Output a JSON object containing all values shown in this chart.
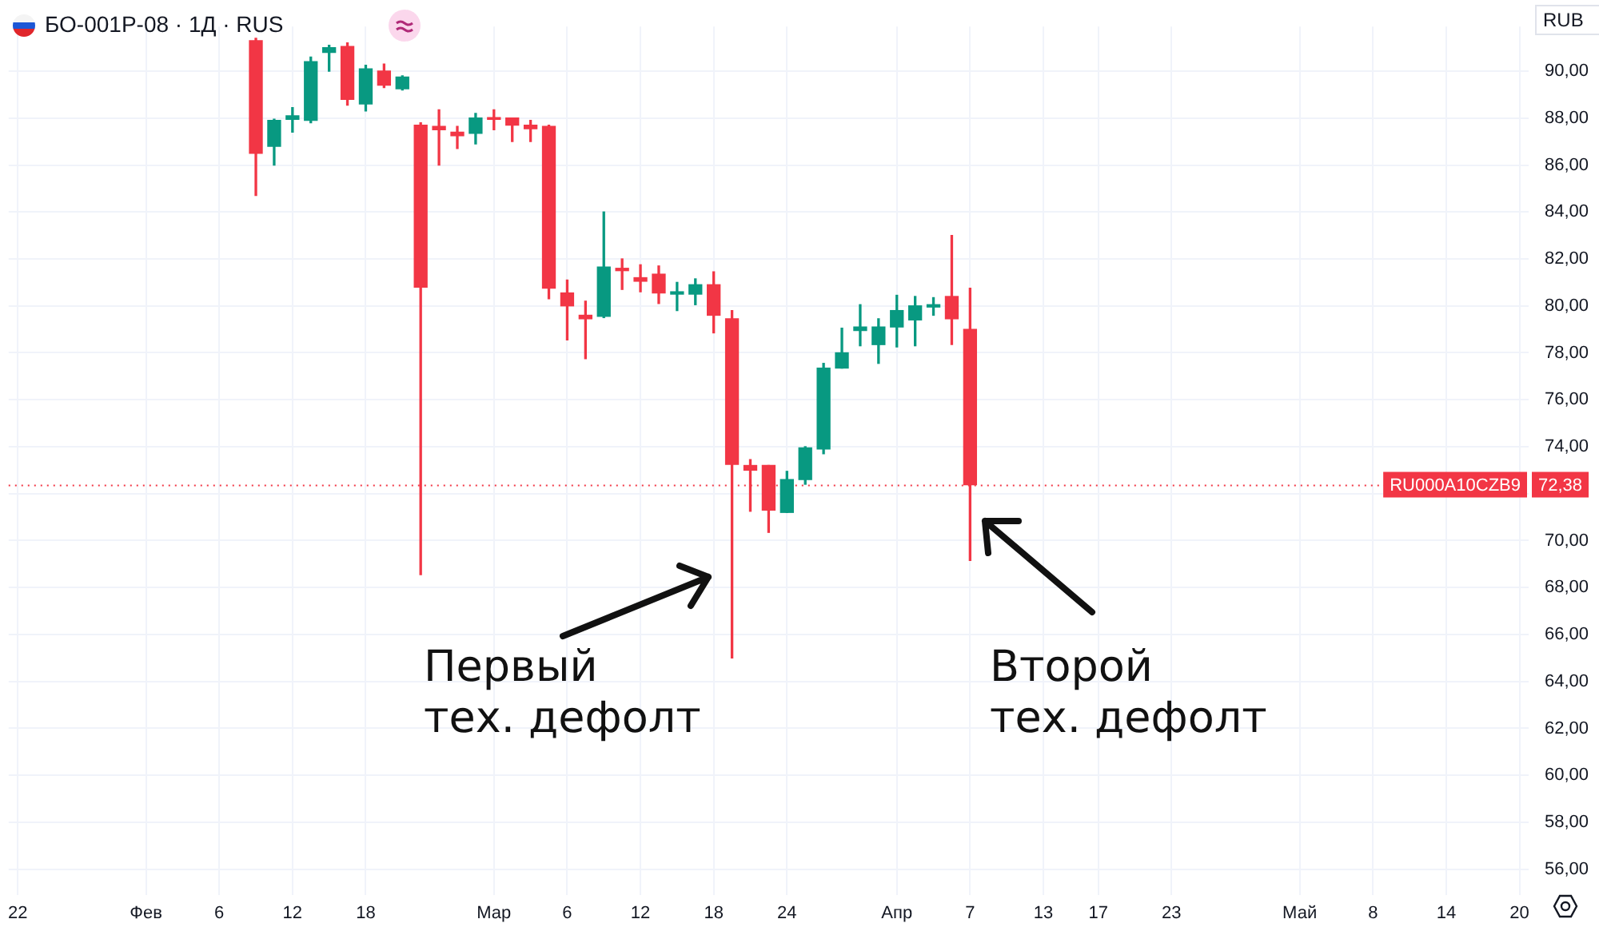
{
  "chart_data": {
    "type": "candlestick",
    "title": "БО-001P-08 · 1Д · RUS",
    "categories": [
      "22",
      null,
      null,
      null,
      null,
      null,
      null,
      "Фев",
      null,
      null,
      null,
      "6",
      null,
      null,
      null,
      "12",
      null,
      null,
      null,
      "18",
      null,
      null,
      null,
      null,
      null,
      null,
      "Мар",
      null,
      null,
      null,
      "6",
      null,
      null,
      null,
      "12",
      null,
      null,
      null,
      "18",
      null,
      null,
      null,
      "24",
      null,
      null,
      null,
      null,
      null,
      "Апр",
      null,
      null,
      null,
      "7",
      null,
      null,
      null,
      "13",
      null,
      null,
      "17",
      null,
      null,
      null,
      "23",
      null,
      null,
      null,
      null,
      null,
      null,
      "Май",
      null,
      null,
      null,
      "8",
      null,
      null,
      null,
      "14",
      null,
      null,
      null,
      "20"
    ],
    "ohlc": [
      null,
      null,
      null,
      null,
      null,
      null,
      null,
      null,
      null,
      null,
      null,
      null,
      null,
      [
        91.3,
        91.4,
        84.7,
        86.5
      ],
      [
        86.8,
        87.95,
        86.0,
        87.9
      ],
      [
        87.95,
        88.45,
        87.4,
        88.1
      ],
      [
        87.9,
        90.6,
        87.8,
        90.4
      ],
      [
        90.8,
        91.1,
        90.0,
        91.0
      ],
      [
        91.05,
        91.2,
        88.55,
        88.8
      ],
      [
        88.6,
        90.25,
        88.3,
        90.1
      ],
      [
        90.0,
        90.3,
        89.3,
        89.4
      ],
      [
        89.25,
        89.8,
        89.2,
        89.75
      ],
      [
        87.7,
        87.8,
        68.55,
        80.8
      ],
      [
        87.65,
        88.35,
        86.0,
        87.5
      ],
      [
        87.4,
        87.65,
        86.7,
        87.25
      ],
      [
        87.35,
        88.2,
        86.9,
        88.0
      ],
      [
        88.0,
        88.35,
        87.5,
        87.95
      ],
      [
        88.0,
        88.0,
        87.0,
        87.7
      ],
      [
        87.7,
        87.9,
        87.0,
        87.55
      ],
      [
        87.65,
        87.7,
        80.3,
        80.75
      ],
      [
        80.55,
        81.1,
        78.55,
        80.0
      ],
      [
        79.6,
        80.2,
        77.75,
        79.45
      ],
      [
        79.55,
        84.0,
        79.5,
        81.65
      ],
      [
        81.6,
        82.0,
        80.7,
        81.5
      ],
      [
        81.2,
        81.75,
        80.6,
        81.05
      ],
      [
        81.35,
        81.7,
        80.1,
        80.55
      ],
      [
        80.5,
        81.0,
        79.8,
        80.6
      ],
      [
        80.5,
        81.15,
        80.05,
        80.9
      ],
      [
        80.9,
        81.45,
        78.85,
        79.6
      ],
      [
        79.45,
        79.8,
        65.0,
        73.25
      ],
      [
        73.2,
        73.45,
        71.25,
        73.0
      ],
      [
        73.2,
        73.2,
        70.35,
        71.3
      ],
      [
        71.2,
        72.95,
        71.2,
        72.6
      ],
      [
        72.6,
        74.0,
        72.4,
        73.95
      ],
      [
        73.9,
        77.55,
        73.7,
        77.35
      ],
      [
        77.35,
        79.05,
        77.35,
        78.0
      ],
      [
        78.95,
        80.05,
        78.3,
        79.1
      ],
      [
        78.35,
        79.45,
        77.55,
        79.1
      ],
      [
        79.1,
        80.45,
        78.25,
        79.8
      ],
      [
        79.4,
        80.4,
        78.3,
        80.0
      ],
      [
        79.95,
        80.35,
        79.6,
        80.05
      ],
      [
        80.4,
        83.0,
        78.35,
        79.45
      ],
      [
        79.0,
        80.75,
        69.15,
        72.38
      ],
      null,
      null,
      null,
      null,
      null,
      null,
      null,
      null,
      null,
      null,
      null,
      null,
      null,
      null,
      null,
      null,
      null,
      null,
      null,
      null,
      null,
      null,
      null,
      null,
      null,
      null,
      null,
      null,
      null,
      null
    ],
    "colors": [
      null,
      null,
      null,
      null,
      null,
      null,
      null,
      null,
      null,
      null,
      null,
      null,
      null,
      "#f23645",
      "#089981",
      "#089981",
      "#089981",
      "#089981",
      "#f23645",
      "#089981",
      "#f23645",
      "#089981",
      "#f23645",
      "#f23645",
      "#f23645",
      "#089981",
      "#f23645",
      "#f23645",
      "#f23645",
      "#f23645",
      "#f23645",
      "#f23645",
      "#089981",
      "#f23645",
      "#f23645",
      "#f23645",
      "#089981",
      "#089981",
      "#f23645",
      "#f23645",
      "#f23645",
      "#f23645",
      "#089981",
      "#089981",
      "#089981",
      "#089981",
      "#089981",
      "#089981",
      "#089981",
      "#089981",
      "#089981",
      "#f23645",
      "#f23645",
      null,
      null,
      null,
      null,
      null,
      null,
      null,
      null,
      null,
      null,
      null,
      null,
      null,
      null,
      null,
      null,
      null,
      null,
      null,
      null,
      null,
      null,
      null,
      null,
      null,
      null,
      null,
      null,
      null,
      null
    ],
    "ylim": [
      54.9,
      91.9
    ],
    "yticks": [
      {
        "value": 56,
        "label": "56,00"
      },
      {
        "value": 58,
        "label": "58,00"
      },
      {
        "value": 60,
        "label": "60,00"
      },
      {
        "value": 62,
        "label": "62,00"
      },
      {
        "value": 64,
        "label": "64,00"
      },
      {
        "value": 66,
        "label": "66,00"
      },
      {
        "value": 68,
        "label": "68,00"
      },
      {
        "value": 70,
        "label": "70,00"
      },
      {
        "value": 72,
        "label": null
      },
      {
        "value": 74,
        "label": "74,00"
      },
      {
        "value": 76,
        "label": "76,00"
      },
      {
        "value": 78,
        "label": "78,00"
      },
      {
        "value": 80,
        "label": "80,00"
      },
      {
        "value": 82,
        "label": "82,00"
      },
      {
        "value": 84,
        "label": "84,00"
      },
      {
        "value": 86,
        "label": "86,00"
      },
      {
        "value": 88,
        "label": "88,00"
      },
      {
        "value": 90,
        "label": "90,00"
      }
    ],
    "ref_lines": [
      {
        "axis": "y",
        "value": 72.38,
        "label": "RU000A10CZB9",
        "color": "#f23645",
        "line_style": "dotted"
      }
    ],
    "annotations": [
      "Первый тех. дефолт",
      "Второй тех. дефолт",
      "RUB",
      {
        "text": "72,38",
        "y": 72.38
      }
    ],
    "grid": true,
    "legend": false
  }
}
